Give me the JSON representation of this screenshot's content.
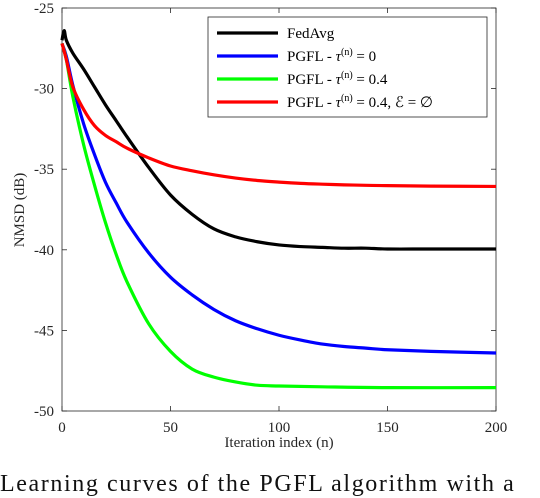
{
  "chart_data": {
    "type": "line",
    "xlabel": "Iteration index (n)",
    "ylabel": "NMSD (dB)",
    "xlim": [
      0,
      200
    ],
    "ylim": [
      -50,
      -25
    ],
    "xticks": [
      "0",
      "50",
      "100",
      "150",
      "200"
    ],
    "yticks": [
      "-25",
      "-30",
      "-35",
      "-40",
      "-45",
      "-50"
    ],
    "grid": false,
    "legend_position": "top-right",
    "series": [
      {
        "name": "FedAvg",
        "color": "#000000",
        "x": [
          0,
          1,
          2,
          5,
          10,
          15,
          20,
          25,
          30,
          40,
          50,
          60,
          70,
          80,
          90,
          100,
          110,
          120,
          130,
          140,
          150,
          170,
          200
        ],
        "y": [
          -27.0,
          -26.4,
          -27.0,
          -27.8,
          -28.8,
          -29.9,
          -31.0,
          -32.0,
          -33.0,
          -34.9,
          -36.6,
          -37.8,
          -38.7,
          -39.2,
          -39.5,
          -39.7,
          -39.8,
          -39.85,
          -39.9,
          -39.9,
          -39.95,
          -39.95,
          -39.95
        ]
      },
      {
        "name": "PGFL - τ(n) = 0",
        "color": "#0000ff",
        "x": [
          0,
          2,
          5,
          10,
          15,
          20,
          25,
          30,
          40,
          50,
          60,
          70,
          80,
          90,
          100,
          110,
          120,
          130,
          140,
          150,
          170,
          200
        ],
        "y": [
          -27.2,
          -28.0,
          -29.8,
          -32.2,
          -34.1,
          -35.8,
          -37.1,
          -38.3,
          -40.2,
          -41.7,
          -42.8,
          -43.7,
          -44.4,
          -44.9,
          -45.3,
          -45.6,
          -45.85,
          -46.0,
          -46.1,
          -46.2,
          -46.3,
          -46.4
        ]
      },
      {
        "name": "PGFL - τ(n) = 0.4",
        "color": "#00ff00",
        "x": [
          0,
          2,
          5,
          10,
          15,
          20,
          25,
          30,
          40,
          50,
          60,
          70,
          80,
          90,
          100,
          120,
          150,
          200
        ],
        "y": [
          -27.2,
          -28.2,
          -30.5,
          -33.5,
          -36.0,
          -38.3,
          -40.3,
          -42.0,
          -44.6,
          -46.3,
          -47.4,
          -47.9,
          -48.2,
          -48.4,
          -48.45,
          -48.5,
          -48.55,
          -48.55
        ]
      },
      {
        "name": "PGFL - τ(n) = 0.4, ℰ = ∅",
        "color": "#ff0000",
        "x": [
          0,
          2,
          5,
          10,
          15,
          20,
          25,
          30,
          40,
          50,
          60,
          70,
          80,
          90,
          100,
          110,
          120,
          130,
          140,
          150,
          170,
          200
        ],
        "y": [
          -27.2,
          -28.2,
          -29.9,
          -31.3,
          -32.3,
          -32.9,
          -33.3,
          -33.7,
          -34.3,
          -34.8,
          -35.1,
          -35.35,
          -35.55,
          -35.7,
          -35.8,
          -35.88,
          -35.93,
          -35.97,
          -36.0,
          -36.02,
          -36.05,
          -36.07
        ]
      }
    ]
  },
  "legend": [
    {
      "base": "FedAvg"
    },
    {
      "base": "PGFL - ",
      "expr": "τ",
      "sup": "(n)",
      "rest": " = 0"
    },
    {
      "base": "PGFL - ",
      "expr": "τ",
      "sup": "(n)",
      "rest": " = 0.4"
    },
    {
      "base": "PGFL - ",
      "expr": "τ",
      "sup": "(n)",
      "rest": " = 0.4, ℰ = ∅"
    }
  ],
  "caption": "Learning curves of the PGFL algorithm with a"
}
